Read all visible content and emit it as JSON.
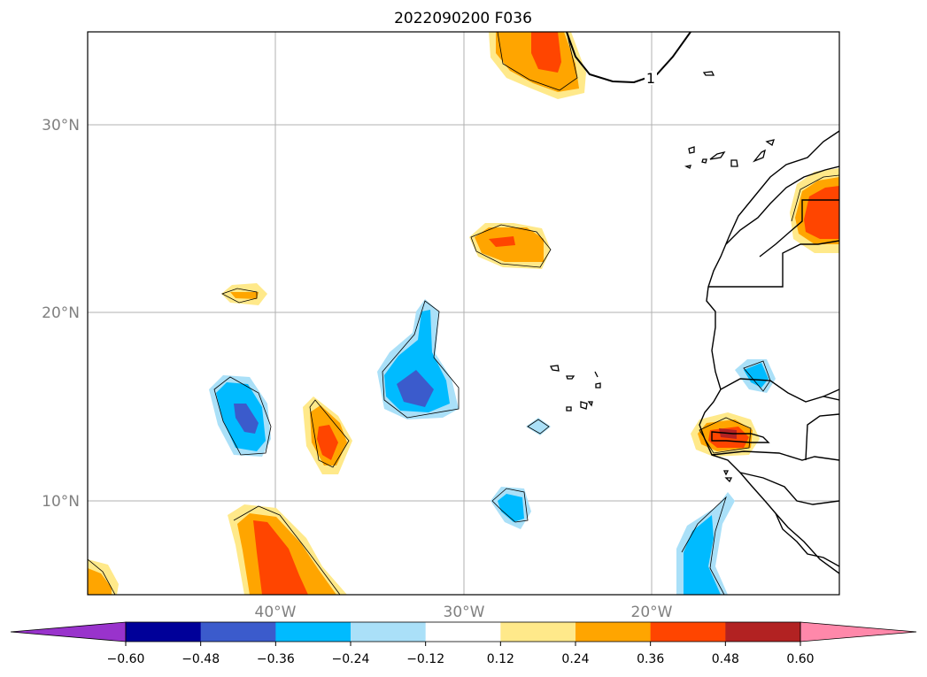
{
  "title": "2022090200 F036",
  "map": {
    "lon_range": [
      -50,
      -10
    ],
    "lat_range": [
      5,
      35
    ],
    "lon_ticks": [
      {
        "value": -40,
        "label": "40°W"
      },
      {
        "value": -30,
        "label": "30°W"
      },
      {
        "value": -20,
        "label": "20°W"
      }
    ],
    "lat_ticks": [
      {
        "value": 10,
        "label": "10°N"
      },
      {
        "value": 20,
        "label": "20°N"
      },
      {
        "value": 30,
        "label": "30°N"
      }
    ],
    "gridlines": true,
    "contour_label": "1"
  },
  "colorbar": {
    "orientation": "horizontal",
    "extend": "both",
    "under_color": "#9933cc",
    "over_color": "#ff88aa",
    "levels": [
      {
        "label": "−0.60",
        "color": "#000099"
      },
      {
        "label": "−0.48",
        "color": "#3b5bcc"
      },
      {
        "label": "−0.36",
        "color": "#00bbff"
      },
      {
        "label": "−0.24",
        "color": "#aae0f8"
      },
      {
        "label": "−0.12",
        "color": "#ffffff"
      },
      {
        "label": "0.12",
        "color": "#ffe98a"
      },
      {
        "label": "0.24",
        "color": "#ffa500"
      },
      {
        "label": "0.36",
        "color": "#ff4500"
      },
      {
        "label": "0.48",
        "color": "#b22222"
      },
      {
        "label": "0.60",
        "color": "#ff88aa"
      }
    ]
  }
}
